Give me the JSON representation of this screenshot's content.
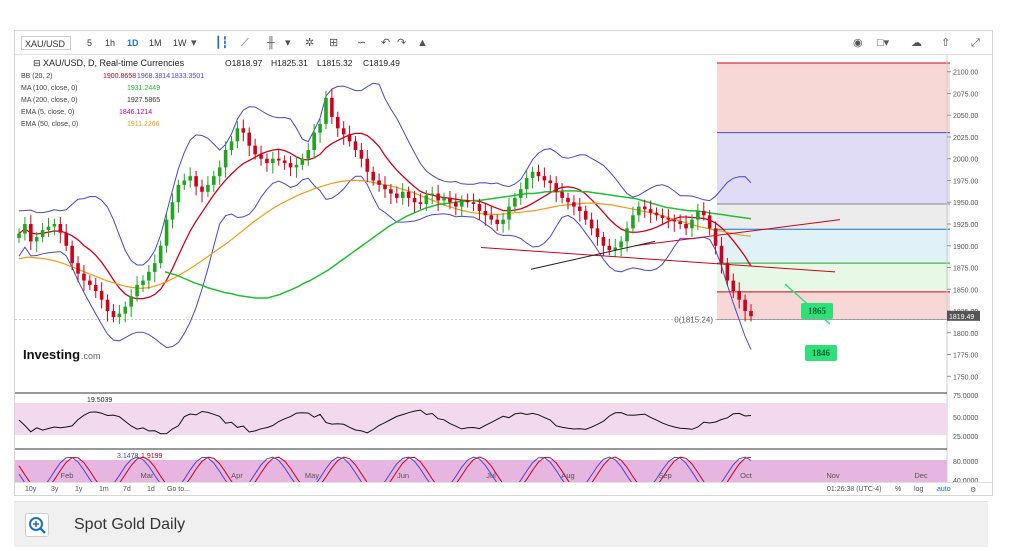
{
  "toolbar": {
    "symbol": "XAU/USD",
    "intervals": [
      "5",
      "1h",
      "1D",
      "1M",
      "1W"
    ],
    "active_interval": "1D",
    "icons": [
      "bars-icon",
      "area-icon",
      "candle-icon",
      "settings-icon",
      "indicators-icon",
      "compare-icon",
      "undo-icon",
      "redo-icon",
      "draw-icon",
      "camera-icon",
      "layout-icon",
      "cloud-icon",
      "upload-icon",
      "fullscreen-icon"
    ]
  },
  "legend": {
    "title": "XAU/USD, D, Real-time Currencies",
    "ohlc": {
      "O": "O1818.97",
      "H": "H1825.31",
      "L": "L1815.32",
      "C": "C1819.49"
    },
    "indicators": [
      {
        "label": "BB (20, 2)",
        "values": [
          "1900.8658",
          "1968.3814",
          "1833.3501"
        ],
        "colors": [
          "#d0021b",
          "#4a46d6",
          "#4a46d6"
        ]
      },
      {
        "label": "MA (100, close, 0)",
        "values": [
          "1931.2449"
        ],
        "colors": [
          "#1fc12f"
        ]
      },
      {
        "label": "MA (200, close, 0)",
        "values": [
          "1927.5865"
        ],
        "colors": [
          "#333333"
        ]
      },
      {
        "label": "EMA (5, close, 0)",
        "values": [
          "1846.1214"
        ],
        "colors": [
          "#c000c0"
        ]
      },
      {
        "label": "EMA (50, close, 0)",
        "values": [
          "1911.2266"
        ],
        "colors": [
          "#f39c12"
        ]
      }
    ]
  },
  "brand": {
    "name": "Investing",
    "suffix": ".com"
  },
  "annotations": {
    "fib_zero": "0(1815.24)",
    "price_tag": "1819.49",
    "label_1865": "1865",
    "label_1846": "1846"
  },
  "indicator_panels": {
    "adx_value": "19.5039",
    "stoch_values": [
      "3.1478",
      "1.9199"
    ]
  },
  "footer": {
    "ranges": [
      "10y",
      "3y",
      "1y",
      "1m",
      "7d",
      "1d",
      "Go to..."
    ],
    "time": "01:26:38 (UTC-4)",
    "options": [
      "%",
      "log",
      "auto"
    ]
  },
  "caption": {
    "text": "Spot Gold Daily"
  },
  "colors": {
    "bull": "#1fa51f",
    "bear": "#d0021b",
    "bb": "#4a46d6",
    "ma100": "#1fc12f",
    "ema50": "#f39c12",
    "ema5": "#d0021b",
    "fib_red": "#f6c9c9",
    "fib_blue": "#d5d0f3",
    "fib_grey": "#e6e6e6",
    "fib_lblue": "#d7ecf6",
    "fib_green": "#dff6df",
    "label_green": "#2fe07a",
    "panel_pink": "#f2d9ee",
    "panel_pink2": "#e6b5e0"
  },
  "chart_data": {
    "type": "candlestick",
    "title": "XAU/USD, D, Real-time Currencies",
    "xlabel": "",
    "ylabel": "",
    "x_ticks": [
      "Feb",
      "Mar",
      "Apr",
      "May",
      "Jun",
      "Jul",
      "Aug",
      "Sep",
      "Oct",
      "Nov",
      "Dec"
    ],
    "y_ticks": [
      2100,
      2075,
      2050,
      2025,
      2000,
      1975,
      1950,
      1925,
      1900,
      1875,
      1850,
      1825,
      1800,
      1775,
      1750
    ],
    "ylim": [
      1740,
      2110
    ],
    "grid": false,
    "fib_levels": [
      {
        "price": 2110,
        "color": "red"
      },
      {
        "price": 2030,
        "color": "blue"
      },
      {
        "price": 1948,
        "color": "grey"
      },
      {
        "price": 1919,
        "color": "lightblue"
      },
      {
        "price": 1880,
        "color": "green"
      },
      {
        "price": 1847,
        "color": "red"
      },
      {
        "price": 1815.24,
        "color": "line"
      }
    ],
    "closes": [
      1914,
      1925,
      1905,
      1910,
      1918,
      1922,
      1925,
      1915,
      1900,
      1880,
      1868,
      1860,
      1855,
      1848,
      1838,
      1825,
      1818,
      1822,
      1830,
      1842,
      1855,
      1860,
      1870,
      1880,
      1900,
      1930,
      1950,
      1970,
      1975,
      1980,
      1968,
      1962,
      1970,
      1980,
      1990,
      2010,
      2020,
      2035,
      2030,
      2015,
      2005,
      2000,
      1995,
      2000,
      1998,
      1995,
      1990,
      1993,
      2000,
      2010,
      2030,
      2040,
      2070,
      2048,
      2035,
      2028,
      2020,
      2010,
      2000,
      1985,
      1975,
      1970,
      1965,
      1960,
      1955,
      1962,
      1955,
      1950,
      1948,
      1958,
      1960,
      1952,
      1955,
      1950,
      1945,
      1952,
      1950,
      1948,
      1940,
      1935,
      1930,
      1925,
      1930,
      1945,
      1955,
      1965,
      1978,
      1985,
      1980,
      1975,
      1972,
      1962,
      1955,
      1950,
      1945,
      1940,
      1930,
      1920,
      1910,
      1900,
      1895,
      1898,
      1905,
      1920,
      1935,
      1945,
      1942,
      1938,
      1935,
      1932,
      1930,
      1928,
      1925,
      1920,
      1930,
      1940,
      1935,
      1920,
      1900,
      1880,
      1860,
      1848,
      1838,
      1825,
      1819
    ],
    "ma100": [
      1870,
      1868,
      1866,
      1863,
      1860,
      1857,
      1855,
      1852,
      1850,
      1848,
      1846,
      1845,
      1843,
      1842,
      1841,
      1840,
      1840,
      1840,
      1842,
      1844,
      1847,
      1850,
      1853,
      1857,
      1860,
      1864,
      1868,
      1872,
      1877,
      1882,
      1887,
      1892,
      1897,
      1902,
      1907,
      1912,
      1917,
      1922,
      1926,
      1930,
      1934,
      1937,
      1940,
      1943,
      1945,
      1947,
      1948,
      1949,
      1950,
      1951,
      1951,
      1952,
      1952,
      1953,
      1954,
      1955,
      1956,
      1957,
      1958,
      1959,
      1960,
      1960,
      1961,
      1962,
      1962,
      1962,
      1963,
      1963,
      1963,
      1962,
      1962,
      1961,
      1960,
      1959,
      1958,
      1957,
      1956,
      1955,
      1954,
      1952,
      1950,
      1948,
      1946,
      1944,
      1943,
      1942,
      1941,
      1940,
      1940,
      1939,
      1938,
      1937,
      1936,
      1935,
      1934,
      1933,
      1932,
      1931
    ],
    "ema50": [
      1885,
      1887,
      1886,
      1885,
      1883,
      1880,
      1876,
      1872,
      1868,
      1864,
      1860,
      1857,
      1854,
      1852,
      1851,
      1852,
      1855,
      1859,
      1864,
      1870,
      1876,
      1883,
      1890,
      1897,
      1904,
      1912,
      1920,
      1928,
      1935,
      1942,
      1948,
      1953,
      1958,
      1962,
      1966,
      1969,
      1972,
      1974,
      1975,
      1975,
      1974,
      1972,
      1970,
      1968,
      1965,
      1962,
      1958,
      1954,
      1950,
      1946,
      1943,
      1940,
      1938,
      1937,
      1936,
      1936,
      1937,
      1938,
      1939,
      1940,
      1942,
      1944,
      1946,
      1947,
      1948,
      1949,
      1949,
      1948,
      1947,
      1945,
      1943,
      1941,
      1939,
      1937,
      1934,
      1931,
      1928,
      1925,
      1922,
      1920,
      1918,
      1916,
      1914,
      1912,
      1911
    ],
    "adx_value": 19.5039,
    "stoch_k": 3.1478,
    "stoch_d": 1.9199
  }
}
